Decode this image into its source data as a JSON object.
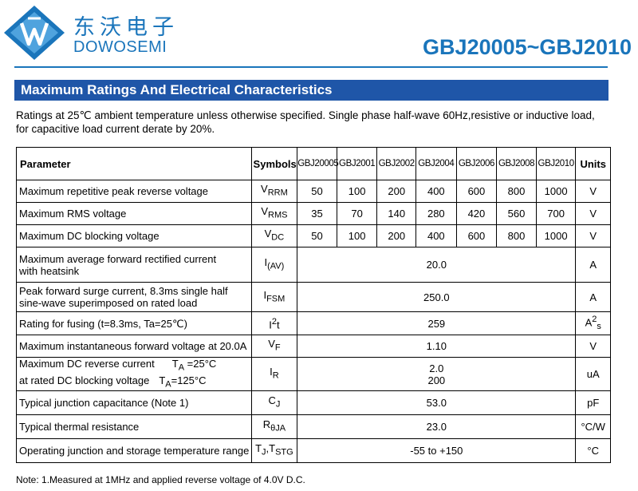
{
  "header": {
    "brand_cn": "东沃电子",
    "brand_en": "DOWOSEMI",
    "part_range": "GBJ20005~GBJ2010",
    "logo_color": "#1a75bb"
  },
  "section": {
    "title": "Maximum Ratings And Electrical Characteristics",
    "bar_color": "#1f56a8"
  },
  "conditions": "Ratings at 25℃ ambient temperature unless otherwise specified. Single phase half-wave 60Hz,resistive or inductive load, for capacitive load current derate by 20%.",
  "table": {
    "headers": {
      "parameter": "Parameter",
      "symbols": "Symbols",
      "units": "Units",
      "parts": [
        "GBJ20005",
        "GBJ2001",
        "GBJ2002",
        "GBJ2004",
        "GBJ2006",
        "GBJ2008",
        "GBJ2010"
      ]
    },
    "rows": [
      {
        "parameter": "Maximum repetitive peak reverse voltage",
        "symbol": "V",
        "sub": "RRM",
        "values": [
          "50",
          "100",
          "200",
          "400",
          "600",
          "800",
          "1000"
        ],
        "unit": "V"
      },
      {
        "parameter": "Maximum RMS voltage",
        "symbol": "V",
        "sub": "RMS",
        "values": [
          "35",
          "70",
          "140",
          "280",
          "420",
          "560",
          "700"
        ],
        "unit": "V"
      },
      {
        "parameter": "Maximum DC blocking voltage",
        "symbol": "V",
        "sub": "DC",
        "values": [
          "50",
          "100",
          "200",
          "400",
          "600",
          "800",
          "1000"
        ],
        "unit": "V"
      },
      {
        "parameter_line1": "Maximum average forward rectified current",
        "parameter_line2": "with heatsink",
        "symbol": "I",
        "sub": "(AV)",
        "value": "20.0",
        "unit": "A"
      },
      {
        "parameter_line1": "Peak forward surge current, 8.3ms single half",
        "parameter_line2": "sine-wave superimposed on rated load",
        "symbol": "I",
        "sub": "FSM",
        "value": "250.0",
        "unit": "A"
      },
      {
        "parameter": "Rating for fusing (t=8.3ms, Ta=25℃)",
        "symbol": "I",
        "sup": "2",
        "sub": "t",
        "value": "259",
        "unit": "A",
        "unit_sup": "2",
        "unit_sub": "s"
      },
      {
        "parameter": "Maximum instantaneous forward voltage at 20.0A",
        "symbol": "V",
        "sub": "F",
        "value": "1.10",
        "unit": "V"
      },
      {
        "parameter_line1": "Maximum DC reverse current",
        "cond1_t": "T",
        "cond1_sub": "A",
        "cond1": " =25°C",
        "parameter_line2": "at rated DC blocking voltage",
        "cond2_t": "T",
        "cond2_sub": "A",
        "cond2": "=125°C",
        "symbol": "I",
        "sub": "R",
        "value1": "2.0",
        "value2": "200",
        "unit": "uA"
      },
      {
        "parameter": "Typical junction capacitance (Note 1)",
        "symbol": "C",
        "sub": "J",
        "value": "53.0",
        "unit": "pF"
      },
      {
        "parameter": "Typical thermal resistance",
        "symbol": "R",
        "sub": "θJA",
        "value": "23.0",
        "unit": "°C/W"
      },
      {
        "parameter": "Operating junction and storage temperature range",
        "symbol": "T",
        "sub": "J",
        "symbol2": ",T",
        "sub2": "STG",
        "value": "-55 to +150",
        "unit": "°C"
      }
    ]
  },
  "note": "Note:  1.Measured at 1MHz and applied reverse voltage of 4.0V D.C."
}
